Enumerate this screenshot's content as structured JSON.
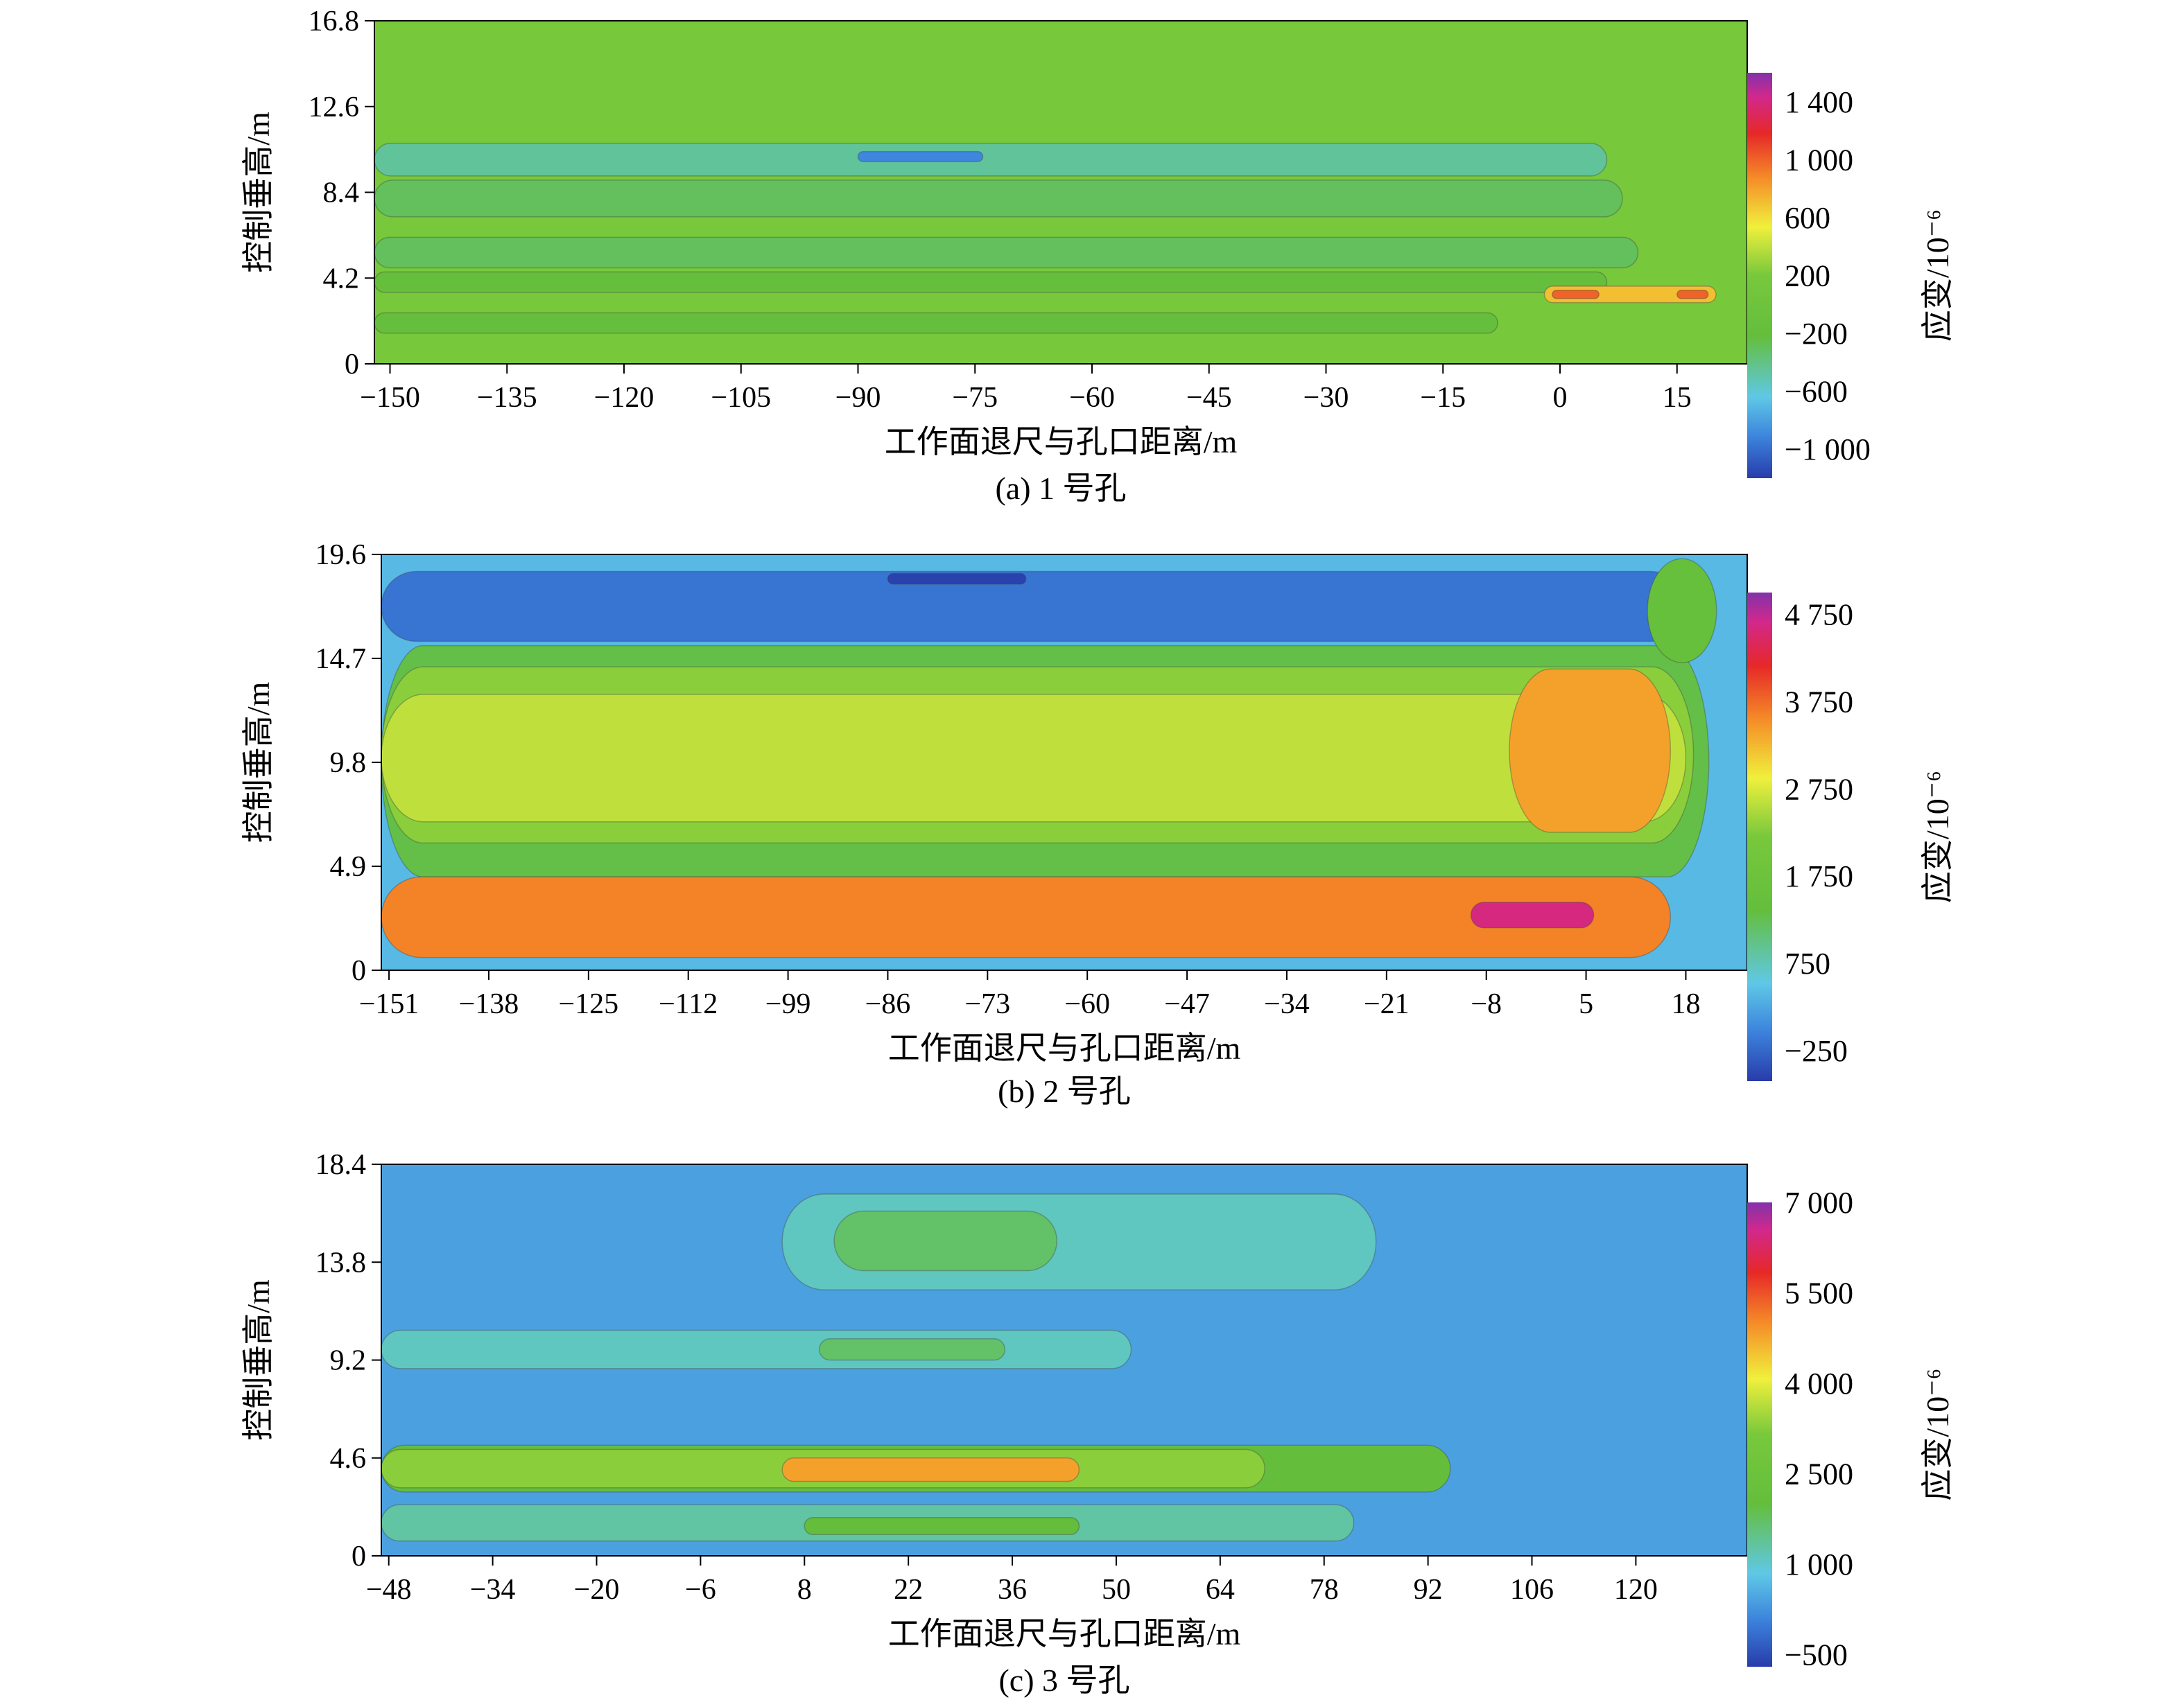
{
  "chart_data": [
    {
      "type": "heatmap",
      "caption": "(a) 1 号孔",
      "xlabel": "工作面退尺与孔口距离/m",
      "ylabel": "控制垂高/m",
      "xlim": [
        -152,
        24
      ],
      "ylim": [
        0,
        16.8
      ],
      "x_ticks": [
        -150,
        -135,
        -120,
        -105,
        -90,
        -75,
        -60,
        -45,
        -30,
        -15,
        0,
        15
      ],
      "x_tick_labels": [
        "−150",
        "−135",
        "−120",
        "−105",
        "−90",
        "−75",
        "−60",
        "−45",
        "−30",
        "−15",
        "0",
        "15"
      ],
      "y_ticks": [
        0,
        4.2,
        8.4,
        12.6,
        16.8
      ],
      "y_tick_labels": [
        "0",
        "4.2",
        "8.4",
        "12.6",
        "16.8"
      ],
      "colorbar": {
        "label": "应变/10⁻⁶",
        "range": [
          -1200,
          1600
        ],
        "ticks": [
          1400,
          1000,
          600,
          200,
          -200,
          -600,
          -1000
        ],
        "tick_labels": [
          "1 400",
          "1 000",
          "600",
          "200",
          "−200",
          "−600",
          "−1 000"
        ]
      },
      "background_value": 200,
      "bands": [
        {
          "x": [
            -152,
            6
          ],
          "y": [
            9.2,
            10.8
          ],
          "value": -450
        },
        {
          "x": [
            -152,
            8
          ],
          "y": [
            7.2,
            9.0
          ],
          "value": -300
        },
        {
          "x": [
            -152,
            10
          ],
          "y": [
            4.7,
            6.2
          ],
          "value": -300
        },
        {
          "x": [
            -152,
            6
          ],
          "y": [
            3.5,
            4.5
          ],
          "value": -200
        },
        {
          "x": [
            -152,
            -8
          ],
          "y": [
            1.5,
            2.5
          ],
          "value": -200
        },
        {
          "x": [
            -90,
            -74
          ],
          "y": [
            9.9,
            10.4
          ],
          "value": -900
        },
        {
          "x": [
            -2,
            20
          ],
          "y": [
            3.0,
            3.8
          ],
          "value": 700
        },
        {
          "x": [
            -1,
            5
          ],
          "y": [
            3.2,
            3.6
          ],
          "value": 1000
        },
        {
          "x": [
            15,
            19
          ],
          "y": [
            3.2,
            3.6
          ],
          "value": 1000
        }
      ]
    },
    {
      "type": "heatmap",
      "caption": "(b) 2 号孔",
      "xlabel": "工作面退尺与孔口距离/m",
      "ylabel": "控制垂高/m",
      "xlim": [
        -152,
        26
      ],
      "ylim": [
        0,
        19.6
      ],
      "x_ticks": [
        -151,
        -138,
        -125,
        -112,
        -99,
        -86,
        -73,
        -60,
        -47,
        -34,
        -21,
        -8,
        5,
        18
      ],
      "x_tick_labels": [
        "−151",
        "−138",
        "−125",
        "−112",
        "−99",
        "−86",
        "−73",
        "−60",
        "−47",
        "−34",
        "−21",
        "−8",
        "5",
        "18"
      ],
      "y_ticks": [
        0,
        4.9,
        9.8,
        14.7,
        19.6
      ],
      "y_tick_labels": [
        "0",
        "4.9",
        "9.8",
        "14.7",
        "19.6"
      ],
      "colorbar": {
        "label": "应变/10⁻⁶",
        "range": [
          -600,
          5000
        ],
        "ticks": [
          4750,
          3750,
          2750,
          1750,
          750,
          -250
        ],
        "tick_labels": [
          "4 750",
          "3 750",
          "2 750",
          "1 750",
          "750",
          "−250"
        ]
      },
      "background_value": 400,
      "bands": [
        {
          "x": [
            -152,
            18
          ],
          "y": [
            15.5,
            18.8
          ],
          "value": -150
        },
        {
          "x": [
            -86,
            -68
          ],
          "y": [
            18.2,
            18.7
          ],
          "value": -550
        },
        {
          "x": [
            -152,
            21
          ],
          "y": [
            4.4,
            15.3
          ],
          "value": 1300
        },
        {
          "x": [
            -152,
            19
          ],
          "y": [
            6.0,
            14.3
          ],
          "value": 2300
        },
        {
          "x": [
            -152,
            18
          ],
          "y": [
            7.0,
            13.0
          ],
          "value": 2600
        },
        {
          "x": [
            -5,
            16
          ],
          "y": [
            6.5,
            14.2
          ],
          "value": 3400
        },
        {
          "x": [
            -152,
            16
          ],
          "y": [
            0.6,
            4.4
          ],
          "value": 3600
        },
        {
          "x": [
            -10,
            6
          ],
          "y": [
            2.0,
            3.2
          ],
          "value": 4600
        },
        {
          "x": [
            13,
            22
          ],
          "y": [
            14.5,
            19.4
          ],
          "value": 1500
        }
      ]
    },
    {
      "type": "heatmap",
      "caption": "(c) 3 号孔",
      "xlabel": "工作面退尺与孔口距离/m",
      "ylabel": "控制垂高/m",
      "xlim": [
        -49,
        135
      ],
      "ylim": [
        0,
        18.4
      ],
      "x_ticks": [
        -48,
        -34,
        -20,
        -6,
        8,
        22,
        36,
        50,
        64,
        78,
        92,
        106,
        120
      ],
      "x_tick_labels": [
        "−48",
        "−34",
        "−20",
        "−6",
        "8",
        "22",
        "36",
        "50",
        "64",
        "78",
        "92",
        "106",
        "120"
      ],
      "y_ticks": [
        0,
        4.6,
        9.2,
        13.8,
        18.4
      ],
      "y_tick_labels": [
        "0",
        "4.6",
        "9.2",
        "13.8",
        "18.4"
      ],
      "colorbar": {
        "label": "应变/10⁻⁶",
        "range": [
          -700,
          7000
        ],
        "ticks": [
          7000,
          5500,
          4000,
          2500,
          1000,
          -500
        ],
        "tick_labels": [
          "7 000",
          "5 500",
          "4 000",
          "2 500",
          "1 000",
          "−500"
        ]
      },
      "background_value": 400,
      "bands": [
        {
          "x": [
            5,
            85
          ],
          "y": [
            12.5,
            17.0
          ],
          "value": 1100
        },
        {
          "x": [
            12,
            42
          ],
          "y": [
            13.4,
            16.2
          ],
          "value": 1700
        },
        {
          "x": [
            -49,
            52
          ],
          "y": [
            8.8,
            10.6
          ],
          "value": 1100
        },
        {
          "x": [
            10,
            35
          ],
          "y": [
            9.2,
            10.2
          ],
          "value": 1700
        },
        {
          "x": [
            -49,
            95
          ],
          "y": [
            3.0,
            5.2
          ],
          "value": 2000
        },
        {
          "x": [
            -49,
            70
          ],
          "y": [
            3.2,
            5.0
          ],
          "value": 3300
        },
        {
          "x": [
            5,
            45
          ],
          "y": [
            3.5,
            4.6
          ],
          "value": 4800
        },
        {
          "x": [
            -49,
            82
          ],
          "y": [
            0.7,
            2.4
          ],
          "value": 1300
        },
        {
          "x": [
            8,
            45
          ],
          "y": [
            1.0,
            1.8
          ],
          "value": 2000
        }
      ]
    }
  ]
}
